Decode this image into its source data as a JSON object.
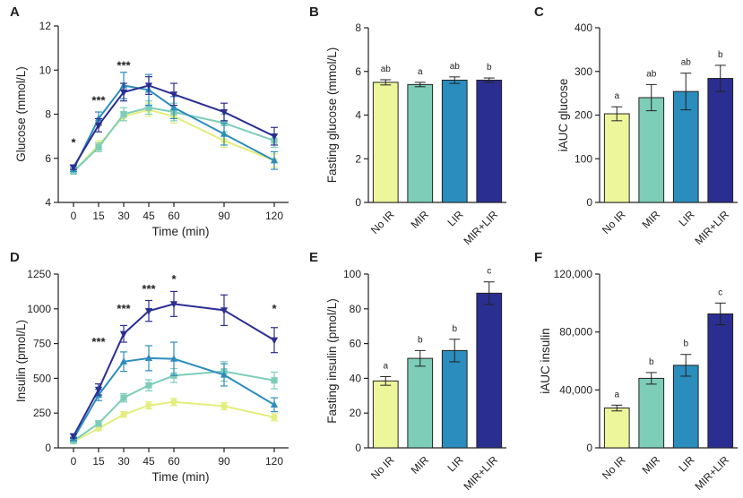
{
  "colors": {
    "NoIR": "#eef69c",
    "MIR": "#7dcdb8",
    "LIR": "#2a8dbd",
    "MIRLIR": "#2b2e91",
    "line_NoIR": "#e3ee7c",
    "line_MIR": "#7dcdb8",
    "line_LIR": "#2e8dbe",
    "line_MIRLIR": "#2b2e91"
  },
  "chart_data": [
    {
      "id": "A",
      "type": "line",
      "letter": "A",
      "xlabel": "Time (min)",
      "ylabel": "Glucose (mmol/L)",
      "x": [
        0,
        15,
        30,
        45,
        60,
        90,
        120
      ],
      "xticks": [
        "0",
        "15",
        "30",
        "45",
        "60",
        "90",
        "120"
      ],
      "ylim": [
        4,
        12
      ],
      "yticks": [
        "4",
        "6",
        "8",
        "10",
        "12"
      ],
      "ytickvals": [
        4,
        6,
        8,
        10,
        12
      ],
      "series": [
        {
          "name": "No IR",
          "values": [
            5.4,
            6.6,
            7.9,
            8.2,
            7.9,
            6.8,
            5.9
          ],
          "err": [
            0.1,
            0.2,
            0.2,
            0.3,
            0.3,
            0.3,
            0.3
          ],
          "marker": "circle"
        },
        {
          "name": "MIR",
          "values": [
            5.4,
            6.5,
            8.0,
            8.3,
            8.1,
            7.6,
            6.8
          ],
          "err": [
            0.1,
            0.2,
            0.3,
            0.3,
            0.4,
            0.4,
            0.3
          ],
          "marker": "square"
        },
        {
          "name": "LIR",
          "values": [
            5.5,
            7.8,
            9.3,
            9.1,
            8.3,
            7.1,
            5.9
          ],
          "err": [
            0.1,
            0.3,
            0.6,
            0.7,
            0.5,
            0.5,
            0.4
          ],
          "marker": "triangle-up"
        },
        {
          "name": "MIR+LIR",
          "values": [
            5.6,
            7.5,
            9.0,
            9.3,
            8.9,
            8.1,
            7.0
          ],
          "err": [
            0.1,
            0.3,
            0.4,
            0.4,
            0.5,
            0.4,
            0.4
          ],
          "marker": "triangle-down"
        }
      ],
      "annotations": [
        {
          "x": 0,
          "y": 6.7,
          "text": "*"
        },
        {
          "x": 15,
          "y": 8.6,
          "text": "***"
        },
        {
          "x": 30,
          "y": 10.2,
          "text": "***"
        }
      ]
    },
    {
      "id": "B",
      "type": "bar",
      "letter": "B",
      "categories": [
        "No IR",
        "MIR",
        "LIR",
        "MIR+LIR"
      ],
      "values": [
        5.5,
        5.4,
        5.6,
        5.6
      ],
      "err": [
        0.12,
        0.1,
        0.15,
        0.1
      ],
      "letters": [
        "ab",
        "a",
        "ab",
        "b"
      ],
      "ylabel": "Fasting glucose (mmol/L)",
      "ylim": [
        0,
        8
      ],
      "yticks": [
        "0",
        "2",
        "4",
        "6",
        "8"
      ],
      "ytickvals": [
        0,
        2,
        4,
        6,
        8
      ]
    },
    {
      "id": "C",
      "type": "bar",
      "letter": "C",
      "categories": [
        "No IR",
        "MIR",
        "LIR",
        "MIR+LIR"
      ],
      "values": [
        203,
        240,
        254,
        284
      ],
      "err": [
        16,
        30,
        42,
        30
      ],
      "letters": [
        "a",
        "ab",
        "ab",
        "b"
      ],
      "ylabel": "iAUC glucose",
      "ylim": [
        0,
        400
      ],
      "yticks": [
        "0",
        "100",
        "200",
        "300",
        "400"
      ],
      "ytickvals": [
        0,
        100,
        200,
        300,
        400
      ]
    },
    {
      "id": "D",
      "type": "line",
      "letter": "D",
      "xlabel": "Time (min)",
      "ylabel": "Insulin (pmol/L)",
      "x": [
        0,
        15,
        30,
        45,
        60,
        90,
        120
      ],
      "xticks": [
        "0",
        "15",
        "30",
        "45",
        "60",
        "90",
        "120"
      ],
      "ylim": [
        0,
        1250
      ],
      "yticks": [
        "0",
        "250",
        "500",
        "750",
        "1000",
        "1250"
      ],
      "ytickvals": [
        0,
        250,
        500,
        750,
        1000,
        1250
      ],
      "series": [
        {
          "name": "No IR",
          "values": [
            45,
            140,
            240,
            305,
            330,
            300,
            220
          ],
          "err": [
            10,
            15,
            20,
            25,
            25,
            25,
            25
          ],
          "marker": "circle"
        },
        {
          "name": "MIR",
          "values": [
            50,
            175,
            360,
            450,
            520,
            550,
            485
          ],
          "err": [
            10,
            20,
            30,
            40,
            50,
            70,
            60
          ],
          "marker": "square"
        },
        {
          "name": "LIR",
          "values": [
            65,
            380,
            620,
            645,
            640,
            525,
            310
          ],
          "err": [
            12,
            40,
            70,
            90,
            120,
            80,
            50
          ],
          "marker": "triangle-up"
        },
        {
          "name": "MIR+LIR",
          "values": [
            85,
            420,
            820,
            985,
            1035,
            990,
            775
          ],
          "err": [
            15,
            40,
            60,
            75,
            90,
            110,
            90
          ],
          "marker": "triangle-down"
        }
      ],
      "annotations": [
        {
          "x": 15,
          "y": 760,
          "text": "***"
        },
        {
          "x": 30,
          "y": 1000,
          "text": "***"
        },
        {
          "x": 45,
          "y": 1140,
          "text": "***"
        },
        {
          "x": 60,
          "y": 1210,
          "text": "*"
        },
        {
          "x": 120,
          "y": 1000,
          "text": "*"
        }
      ]
    },
    {
      "id": "E",
      "type": "bar",
      "letter": "E",
      "categories": [
        "No IR",
        "MIR",
        "LIR",
        "MIR+LIR"
      ],
      "values": [
        38.5,
        51.5,
        56,
        89
      ],
      "err": [
        2.5,
        4.5,
        6.5,
        6.5
      ],
      "letters": [
        "a",
        "b",
        "b",
        "c"
      ],
      "ylabel": "Fasting insulin (pmol/L)",
      "ylim": [
        0,
        100
      ],
      "yticks": [
        "0",
        "20",
        "40",
        "60",
        "80",
        "100"
      ],
      "ytickvals": [
        0,
        20,
        40,
        60,
        80,
        100
      ]
    },
    {
      "id": "F",
      "type": "bar",
      "letter": "F",
      "categories": [
        "No IR",
        "MIR",
        "LIR",
        "MIR+LIR"
      ],
      "values": [
        27500,
        48000,
        57000,
        92500
      ],
      "err": [
        2000,
        4000,
        7500,
        7500
      ],
      "letters": [
        "a",
        "b",
        "b",
        "c"
      ],
      "ylabel": "iAUC insulin",
      "ylim": [
        0,
        120000
      ],
      "yticks": [
        "0",
        "40,000",
        "80,000",
        "120,000"
      ],
      "ytickvals": [
        0,
        40000,
        80000,
        120000
      ]
    }
  ]
}
